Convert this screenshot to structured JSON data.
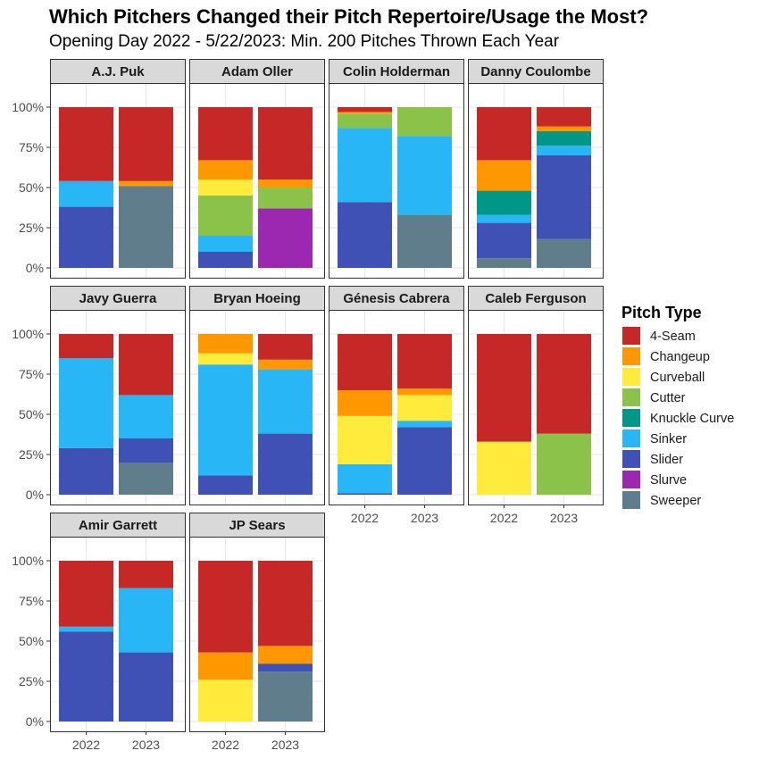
{
  "chart_data": {
    "type": "bar",
    "title": "Which Pitchers Changed their Pitch Repertoire/Usage the Most?",
    "subtitle": "Opening Day 2022 - 5/22/2023: Min. 200 Pitches Thrown Each Year",
    "xlabel": "",
    "ylabel": "",
    "ylim": [
      0,
      1
    ],
    "y_ticks": [
      "0%",
      "25%",
      "50%",
      "75%",
      "100%"
    ],
    "categories": [
      "2022",
      "2023"
    ],
    "legend": {
      "title": "Pitch Type",
      "position": "right",
      "items": [
        {
          "name": "4-Seam",
          "color": "#C62828"
        },
        {
          "name": "Changeup",
          "color": "#FF9800"
        },
        {
          "name": "Curveball",
          "color": "#FFEB3B"
        },
        {
          "name": "Cutter",
          "color": "#8BC34A"
        },
        {
          "name": "Knuckle Curve",
          "color": "#009688"
        },
        {
          "name": "Sinker",
          "color": "#29B6F6"
        },
        {
          "name": "Slider",
          "color": "#3F51B5"
        },
        {
          "name": "Slurve",
          "color": "#9C27B0"
        },
        {
          "name": "Sweeper",
          "color": "#607D8B"
        }
      ]
    },
    "stack_order_bottom_to_top": [
      "Sweeper",
      "Slurve",
      "Slider",
      "Sinker",
      "Knuckle Curve",
      "Cutter",
      "Curveball",
      "Changeup",
      "4-Seam"
    ],
    "panels": [
      {
        "pitcher": "A.J. Puk",
        "bars": [
          {
            "year": "2022",
            "values": {
              "Slider": 0.38,
              "Sinker": 0.16,
              "4-Seam": 0.46
            }
          },
          {
            "year": "2023",
            "values": {
              "Sweeper": 0.51,
              "Changeup": 0.03,
              "4-Seam": 0.46
            }
          }
        ]
      },
      {
        "pitcher": "Adam Oller",
        "bars": [
          {
            "year": "2022",
            "values": {
              "Slider": 0.1,
              "Sinker": 0.1,
              "Cutter": 0.25,
              "Curveball": 0.1,
              "Changeup": 0.12,
              "4-Seam": 0.33
            }
          },
          {
            "year": "2023",
            "values": {
              "Slurve": 0.37,
              "Cutter": 0.13,
              "Changeup": 0.05,
              "4-Seam": 0.45
            }
          }
        ]
      },
      {
        "pitcher": "Colin Holderman",
        "bars": [
          {
            "year": "2022",
            "values": {
              "Slider": 0.41,
              "Sinker": 0.46,
              "Cutter": 0.09,
              "Changeup": 0.01,
              "4-Seam": 0.03
            }
          },
          {
            "year": "2023",
            "values": {
              "Sweeper": 0.33,
              "Sinker": 0.49,
              "Cutter": 0.18
            }
          }
        ]
      },
      {
        "pitcher": "Danny Coulombe",
        "bars": [
          {
            "year": "2022",
            "values": {
              "Sweeper": 0.06,
              "Slider": 0.22,
              "Sinker": 0.05,
              "Knuckle Curve": 0.15,
              "Changeup": 0.19,
              "4-Seam": 0.33
            }
          },
          {
            "year": "2023",
            "values": {
              "Sweeper": 0.18,
              "Slider": 0.52,
              "Sinker": 0.06,
              "Knuckle Curve": 0.09,
              "Changeup": 0.03,
              "4-Seam": 0.12
            }
          }
        ]
      },
      {
        "pitcher": "Javy Guerra",
        "bars": [
          {
            "year": "2022",
            "values": {
              "Slider": 0.29,
              "Sinker": 0.56,
              "4-Seam": 0.15
            }
          },
          {
            "year": "2023",
            "values": {
              "Sweeper": 0.2,
              "Slider": 0.15,
              "Sinker": 0.27,
              "4-Seam": 0.38
            }
          }
        ]
      },
      {
        "pitcher": "Bryan Hoeing",
        "bars": [
          {
            "year": "2022",
            "values": {
              "Slider": 0.12,
              "Sinker": 0.69,
              "Curveball": 0.07,
              "Changeup": 0.12
            }
          },
          {
            "year": "2023",
            "values": {
              "Slider": 0.38,
              "Sinker": 0.4,
              "Changeup": 0.06,
              "4-Seam": 0.16
            }
          }
        ]
      },
      {
        "pitcher": "Génesis Cabrera",
        "bars": [
          {
            "year": "2022",
            "values": {
              "Slider": 0.01,
              "Sinker": 0.18,
              "Curveball": 0.3,
              "Changeup": 0.16,
              "4-Seam": 0.35
            }
          },
          {
            "year": "2023",
            "values": {
              "Slider": 0.42,
              "Sinker": 0.04,
              "Curveball": 0.16,
              "Changeup": 0.04,
              "4-Seam": 0.34
            }
          }
        ]
      },
      {
        "pitcher": "Caleb Ferguson",
        "bars": [
          {
            "year": "2022",
            "values": {
              "Curveball": 0.33,
              "4-Seam": 0.67
            }
          },
          {
            "year": "2023",
            "values": {
              "Cutter": 0.38,
              "4-Seam": 0.62
            }
          }
        ]
      },
      {
        "pitcher": "Amir Garrett",
        "bars": [
          {
            "year": "2022",
            "values": {
              "Slider": 0.56,
              "Sinker": 0.03,
              "4-Seam": 0.41
            }
          },
          {
            "year": "2023",
            "values": {
              "Slider": 0.43,
              "Sinker": 0.4,
              "4-Seam": 0.17
            }
          }
        ]
      },
      {
        "pitcher": "JP Sears",
        "bars": [
          {
            "year": "2022",
            "values": {
              "Curveball": 0.26,
              "Changeup": 0.17,
              "4-Seam": 0.57
            }
          },
          {
            "year": "2023",
            "values": {
              "Sweeper": 0.31,
              "Slider": 0.05,
              "Changeup": 0.11,
              "4-Seam": 0.53
            }
          }
        ]
      }
    ]
  }
}
